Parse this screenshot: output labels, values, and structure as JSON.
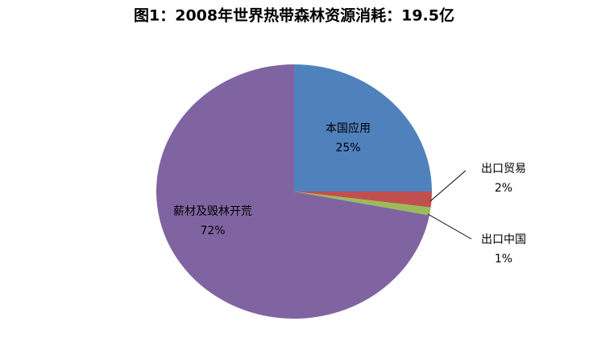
{
  "chart_data": {
    "type": "pie",
    "title": "图1：2008年世界热带森林资源消耗：19.5亿",
    "categories": [
      "本国应用",
      "出口贸易",
      "出口中国",
      "薪材及毁林开荒"
    ],
    "values": [
      25,
      2,
      1,
      72
    ],
    "value_labels": [
      "25%",
      "2%",
      "1%",
      "72%"
    ],
    "colors": [
      "#4f81bd",
      "#c0504d",
      "#9bbb59",
      "#8064a2"
    ]
  }
}
